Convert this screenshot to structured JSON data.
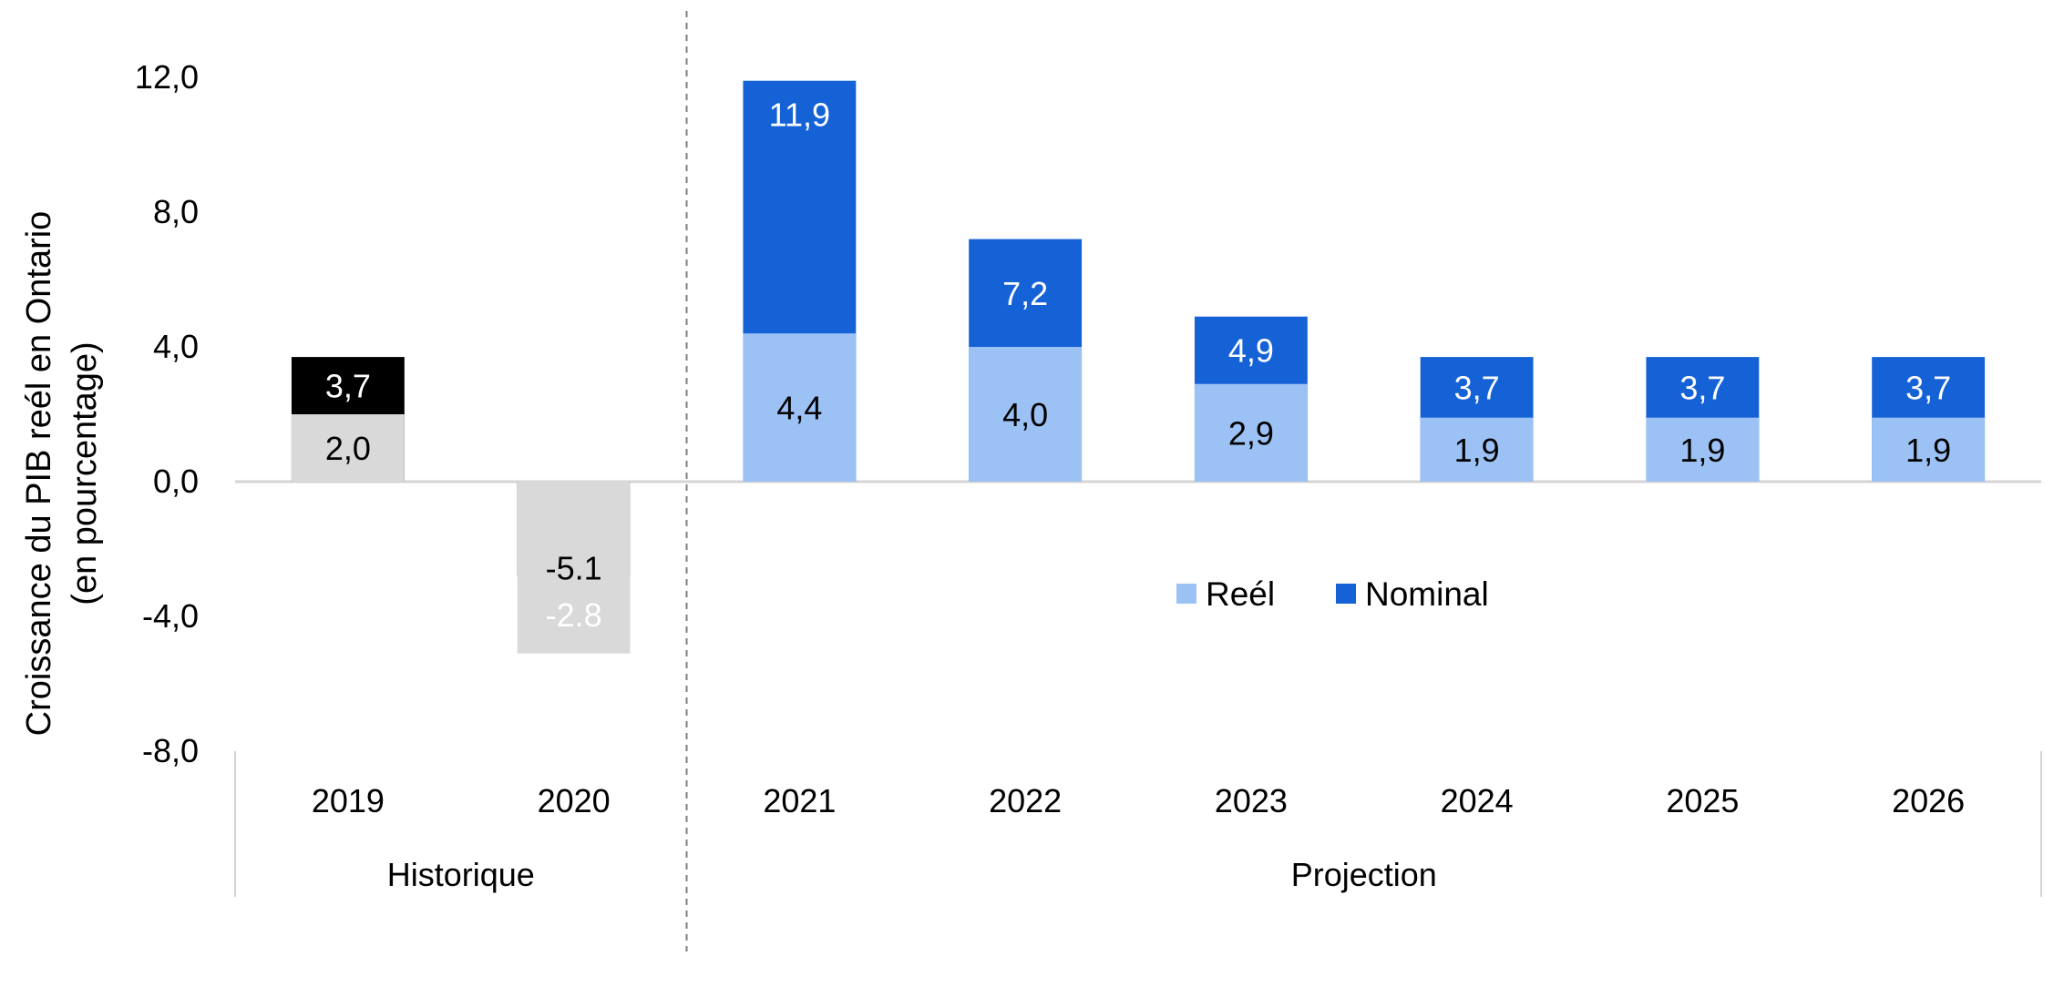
{
  "chart_data": {
    "type": "bar",
    "stacked": false,
    "overlap": true,
    "title": "",
    "ylabel": "Croissance du PIB reél en Ontario",
    "ylabel_sub": "(en pourcentage)",
    "ylim": [
      -8,
      12
    ],
    "yticks": [
      12,
      8,
      4,
      0,
      -4,
      -8
    ],
    "ytick_labels": [
      "12,0",
      "8,0",
      "4,0",
      "0,0",
      "-4,0",
      "-8,0"
    ],
    "grid": false,
    "categories": [
      "2019",
      "2020",
      "2021",
      "2022",
      "2023",
      "2024",
      "2025",
      "2026"
    ],
    "groups": [
      {
        "label": "Historique",
        "categories": [
          "2019",
          "2020"
        ]
      },
      {
        "label": "Projection",
        "categories": [
          "2021",
          "2022",
          "2023",
          "2024",
          "2025",
          "2026"
        ]
      }
    ],
    "series": [
      {
        "name": "Nominal",
        "values": [
          3.7,
          -2.8,
          11.9,
          7.2,
          4.9,
          3.7,
          3.7,
          3.7
        ],
        "labels": [
          "3,7",
          "-2.8",
          "11,9",
          "7,2",
          "4,9",
          "3,7",
          "3,7",
          "3,7"
        ],
        "colors": [
          "#000000",
          "#000000",
          "#1562d6",
          "#1562d6",
          "#1562d6",
          "#1562d6",
          "#1562d6",
          "#1562d6"
        ],
        "label_color": "#ffffff"
      },
      {
        "name": "Reél",
        "values": [
          2.0,
          -5.1,
          4.4,
          4.0,
          2.9,
          1.9,
          1.9,
          1.9
        ],
        "labels": [
          "2,0",
          "-5.1",
          "4,4",
          "4,0",
          "2,9",
          "1,9",
          "1,9",
          "1,9"
        ],
        "colors": [
          "#d9d9d9",
          "#d9d9d9",
          "#9cc2f5",
          "#9cc2f5",
          "#9cc2f5",
          "#9cc2f5",
          "#9cc2f5",
          "#9cc2f5"
        ],
        "label_color": "#000000"
      }
    ],
    "legend": {
      "placement": "center",
      "items": [
        {
          "name": "Reél",
          "color": "#9cc2f5"
        },
        {
          "name": "Nominal",
          "color": "#1562d6"
        }
      ]
    }
  }
}
